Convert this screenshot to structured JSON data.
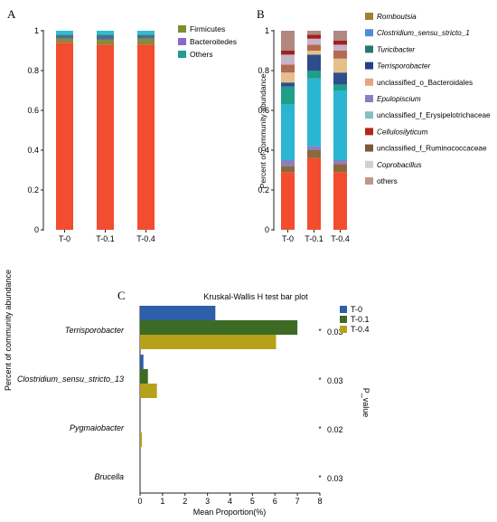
{
  "chart_data": [
    {
      "panel": "A",
      "type": "bar",
      "stacked": true,
      "ylabel": "Percent of community abundance",
      "categories": [
        "T-0",
        "T-0.1",
        "T-0.4"
      ],
      "yticks": [
        "0",
        "0.2",
        "0.4",
        "0.6",
        "0.8",
        "1"
      ],
      "ylim": [
        0,
        1
      ],
      "series": [
        {
          "name": "",
          "color": "#f24d2e",
          "values": [
            0.94,
            0.93,
            0.93
          ]
        },
        {
          "name": "",
          "color": "#8a8a3c",
          "values": [
            0.02,
            0.025,
            0.03
          ]
        },
        {
          "name": "",
          "color": "#4b6e8c",
          "values": [
            0.02,
            0.025,
            0.02
          ]
        },
        {
          "name": "",
          "color": "#2cc0cf",
          "values": [
            0.02,
            0.02,
            0.02
          ]
        }
      ],
      "legend": {
        "position": "top-right",
        "entries": [
          {
            "label": "Firmicutes",
            "color": "#7b8f2e"
          },
          {
            "label": "Bacteroitedes",
            "color": "#8a67c8"
          },
          {
            "label": "Others",
            "color": "#1f9c96"
          }
        ]
      }
    },
    {
      "panel": "B",
      "type": "bar",
      "stacked": true,
      "ylabel": "Percent of community abundance",
      "categories": [
        "T-0",
        "T-0.1",
        "T-0.4"
      ],
      "yticks": [
        "0",
        "0.2",
        "0.4",
        "0.6",
        "0.8",
        "1"
      ],
      "ylim": [
        0,
        1
      ],
      "series": [
        {
          "name": "",
          "color": "#f24d2e",
          "values": [
            0.29,
            0.36,
            0.29
          ]
        },
        {
          "name": "",
          "color": "#8a6a3a",
          "values": [
            0.03,
            0.04,
            0.04
          ]
        },
        {
          "name": "",
          "color": "#8a7fc0",
          "values": [
            0.03,
            0.02,
            0.02
          ]
        },
        {
          "name": "",
          "color": "#2ab6d2",
          "values": [
            0.28,
            0.34,
            0.35
          ]
        },
        {
          "name": "",
          "color": "#1f9e8a",
          "values": [
            0.09,
            0.04,
            0.03
          ]
        },
        {
          "name": "",
          "color": "#2f4d8a",
          "values": [
            0.02,
            0.08,
            0.06
          ]
        },
        {
          "name": "",
          "color": "#e6c08a",
          "values": [
            0.05,
            0.02,
            0.07
          ]
        },
        {
          "name": "",
          "color": "#b46a50",
          "values": [
            0.04,
            0.03,
            0.04
          ]
        },
        {
          "name": "",
          "color": "#c8b4c8",
          "values": [
            0.05,
            0.03,
            0.03
          ]
        },
        {
          "name": "",
          "color": "#a02020",
          "values": [
            0.02,
            0.02,
            0.02
          ]
        },
        {
          "name": "",
          "color": "#b08880",
          "values": [
            0.1,
            0.02,
            0.05
          ]
        }
      ],
      "legend": {
        "position": "right",
        "entries": [
          {
            "label": "Romboutsia",
            "italic": true,
            "color": "#a0822e"
          },
          {
            "label": "Clostridium_sensu_stricto_1",
            "italic": true,
            "color": "#4a8fd6"
          },
          {
            "label": "Turicibacter",
            "italic": true,
            "color": "#247a6e"
          },
          {
            "label": "Terrisporobacter",
            "italic": true,
            "color": "#26408a"
          },
          {
            "label": "unclassified_o_Bacteroidales",
            "italic": false,
            "color": "#e8a47a"
          },
          {
            "label": "Epulopiscium",
            "italic": true,
            "color": "#8a7fc0"
          },
          {
            "label": "unclassified_f_Erysipelotrichaceae",
            "italic": false,
            "color": "#82c0c0"
          },
          {
            "label": "Cellulosilyticum",
            "italic": true,
            "color": "#b02a1a"
          },
          {
            "label": "unclassified_f_Ruminococcaceae",
            "italic": false,
            "color": "#7a5a3a"
          },
          {
            "label": "Coprobacillus",
            "italic": true,
            "color": "#cfcfd6"
          },
          {
            "label": "others",
            "italic": false,
            "color": "#c0968a"
          }
        ]
      }
    },
    {
      "panel": "C",
      "type": "bar",
      "orientation": "horizontal",
      "title": "Kruskal-Wallis H test bar plot",
      "xlabel": "Mean Proportion(%)",
      "right_label": "P_value",
      "xlim": [
        0,
        8
      ],
      "xticks": [
        "0",
        "1",
        "2",
        "3",
        "4",
        "5",
        "6",
        "7",
        "8"
      ],
      "categories": [
        "Terrisporobacter",
        "Clostridium_sensu_stricto_13",
        "Pygmaiobacter",
        "Brucella"
      ],
      "p_values": [
        "0.03",
        "0.03",
        "0.02",
        "0.03"
      ],
      "p_marker": "*",
      "series": [
        {
          "name": "T-0",
          "color": "#2e5fa8",
          "values": [
            3.35,
            0.15,
            0.0,
            0.0
          ]
        },
        {
          "name": "T-0.1",
          "color": "#3d6b25",
          "values": [
            7.0,
            0.35,
            0.0,
            0.0
          ]
        },
        {
          "name": "T-0.4",
          "color": "#b5a21a",
          "values": [
            6.05,
            0.75,
            0.08,
            0.0
          ]
        }
      ],
      "legend": {
        "position": "top-right"
      }
    }
  ]
}
